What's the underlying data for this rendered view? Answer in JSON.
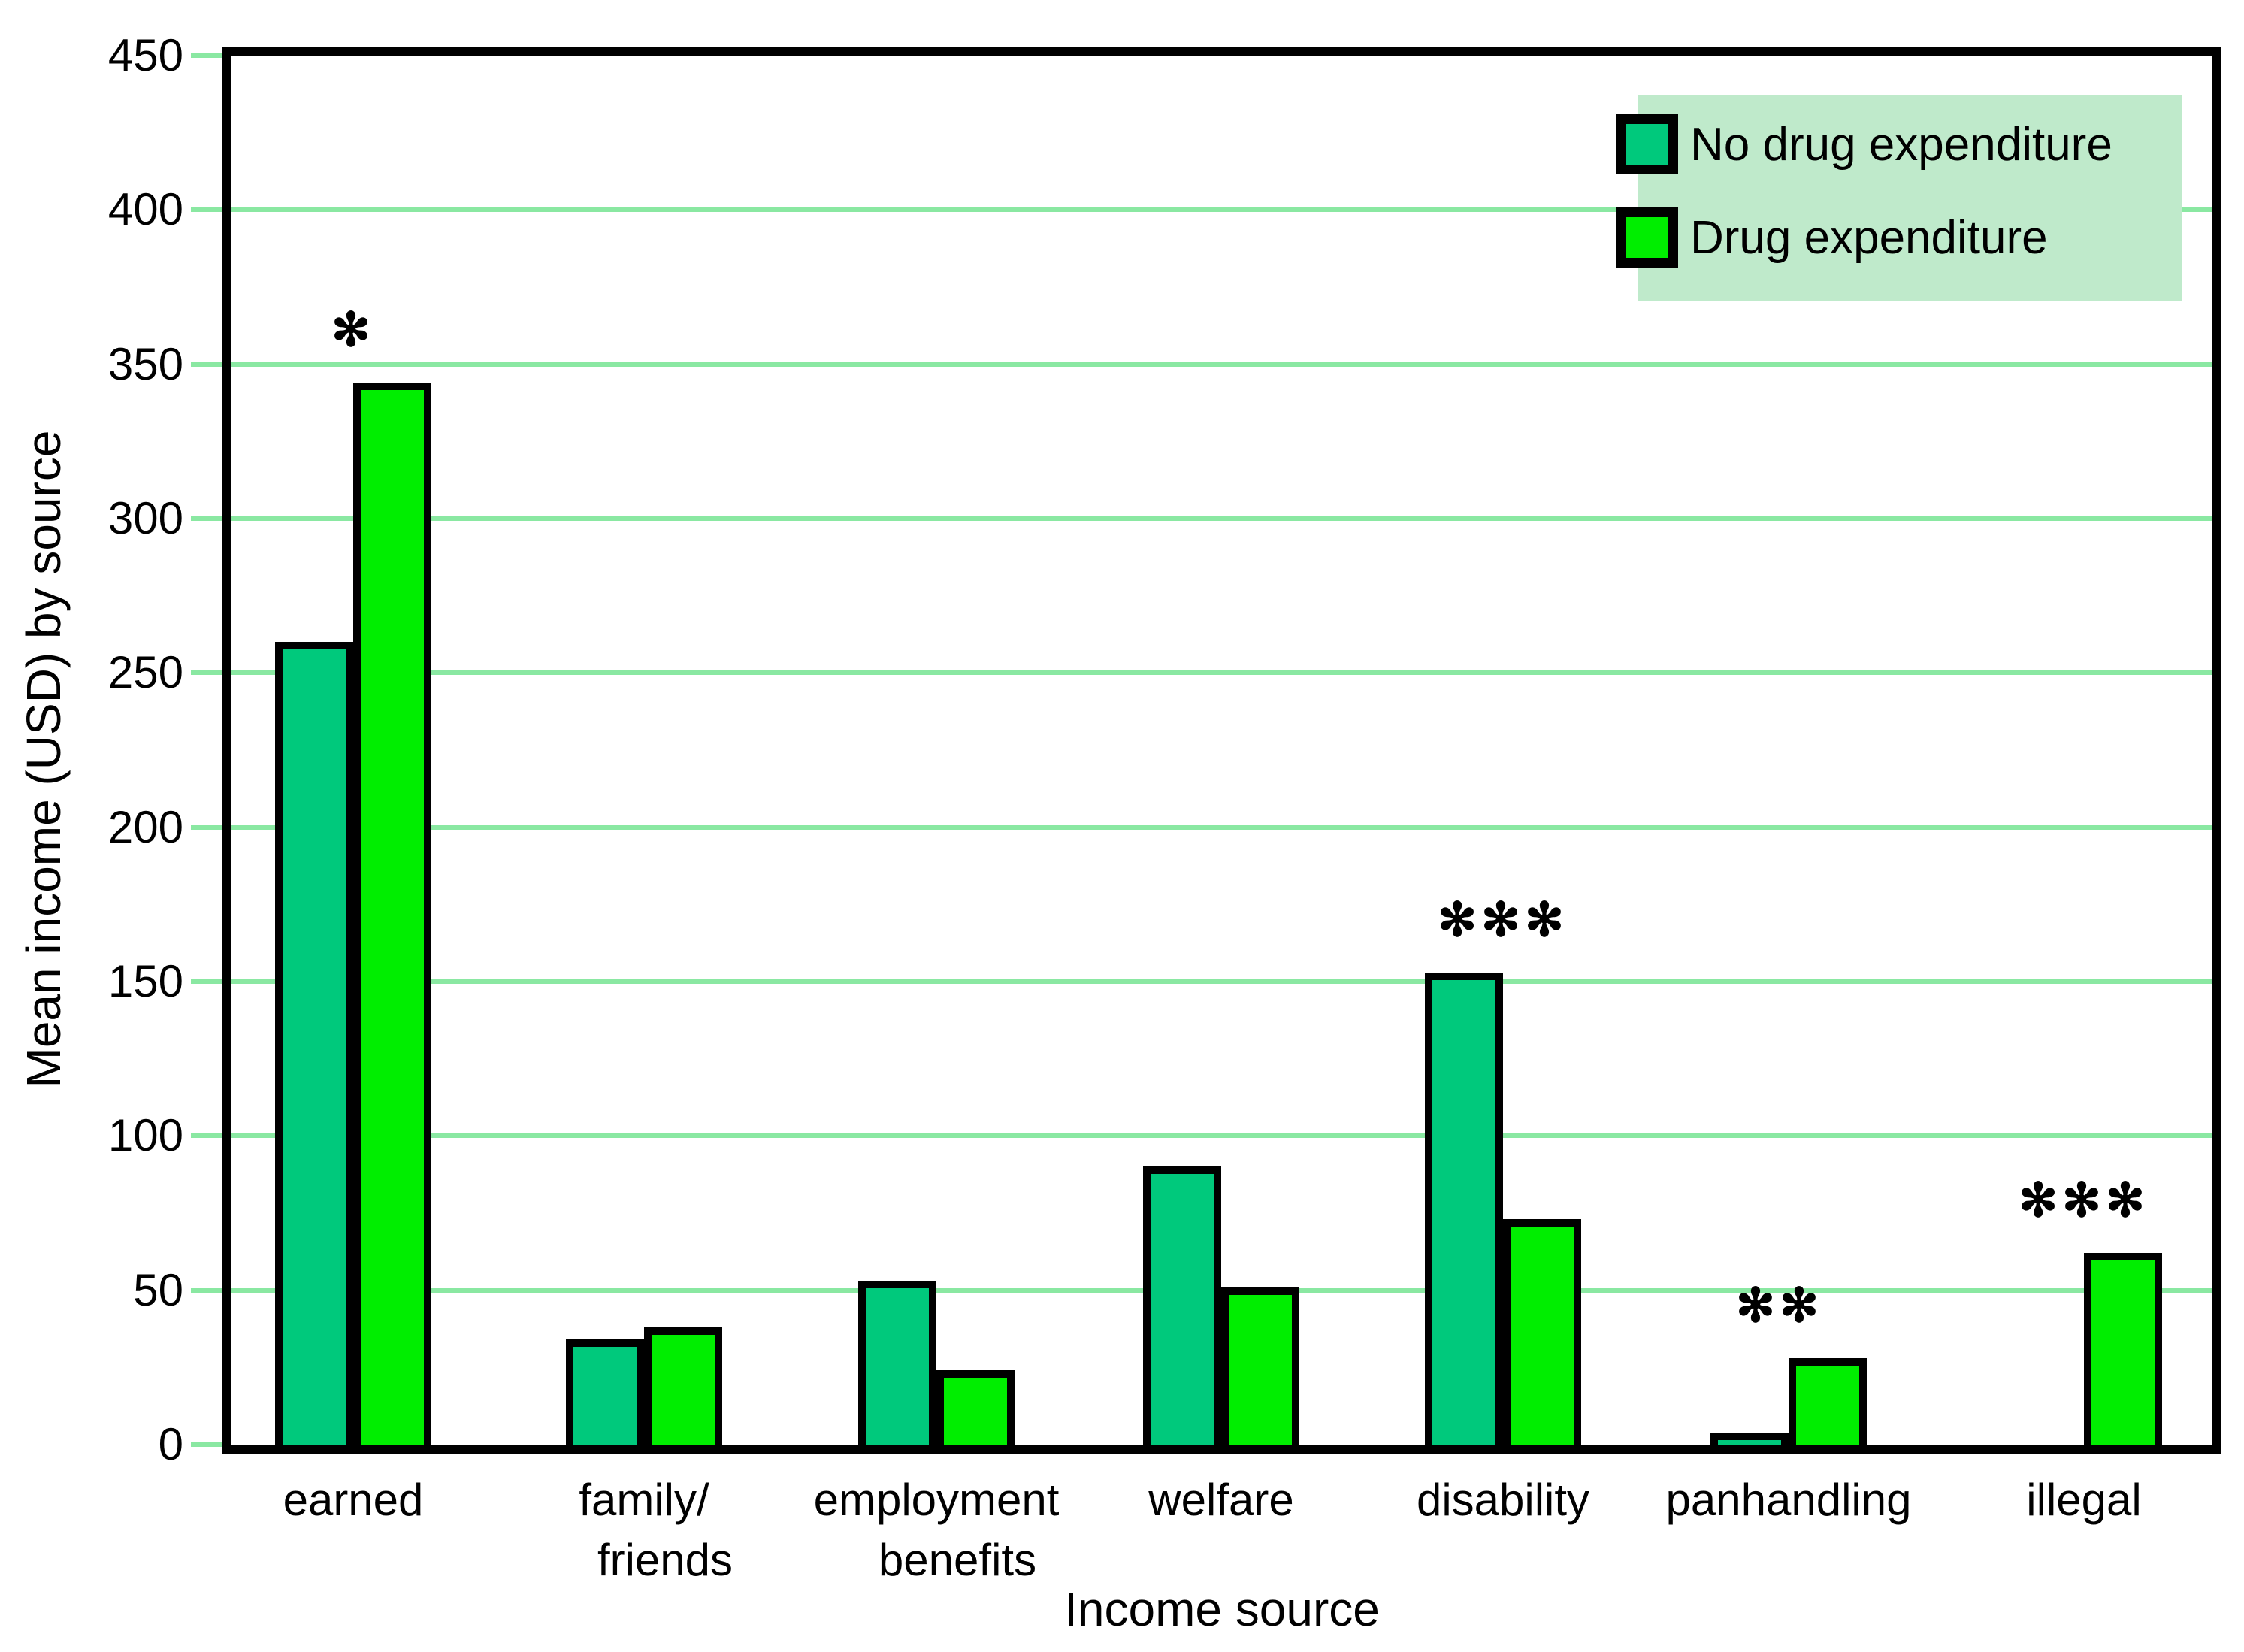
{
  "chart_data": {
    "type": "bar",
    "title": "",
    "xlabel": "Income source",
    "ylabel": "Mean income (USD) by source",
    "categories": [
      {
        "label": "earned",
        "lines": [
          "earned"
        ]
      },
      {
        "label": "family/friends",
        "lines": [
          "family/",
          "friends"
        ]
      },
      {
        "label": "employment benefits",
        "lines": [
          "employment",
          "benefits"
        ]
      },
      {
        "label": "welfare",
        "lines": [
          "welfare"
        ]
      },
      {
        "label": "disability",
        "lines": [
          "disability"
        ]
      },
      {
        "label": "panhandling",
        "lines": [
          "panhandling"
        ]
      },
      {
        "label": "illegal",
        "lines": [
          "illegal"
        ]
      }
    ],
    "series": [
      {
        "name": "No drug expenditure",
        "color": "#00c97c",
        "values": [
          260,
          34,
          53,
          90,
          153,
          4,
          0
        ]
      },
      {
        "name": "Drug expenditure",
        "color": "#00ee00",
        "values": [
          344,
          38,
          24,
          51,
          73,
          28,
          62
        ]
      }
    ],
    "annotations": [
      {
        "category": "earned",
        "stars": "*",
        "above_series": 1
      },
      {
        "category": "disability",
        "stars": "***",
        "above_series": 0
      },
      {
        "category": "panhandling",
        "stars": "**",
        "above_series": 1
      },
      {
        "category": "illegal",
        "stars": "***",
        "above_series": 1
      }
    ],
    "ylim": [
      0,
      450
    ],
    "ytick_step": 50,
    "yticks": [
      0,
      50,
      100,
      150,
      200,
      250,
      300,
      350,
      400,
      450
    ],
    "grid": true,
    "legend_position": "top-right"
  },
  "colors": {
    "background": "#ffffff",
    "frame": "#000000",
    "gridline": "#8ae8a2",
    "tick": "#8ae8a2",
    "legend_background": "#bfeacb",
    "text": "#000000",
    "series_no_drug": "#00c97c",
    "series_drug": "#00ee00"
  }
}
